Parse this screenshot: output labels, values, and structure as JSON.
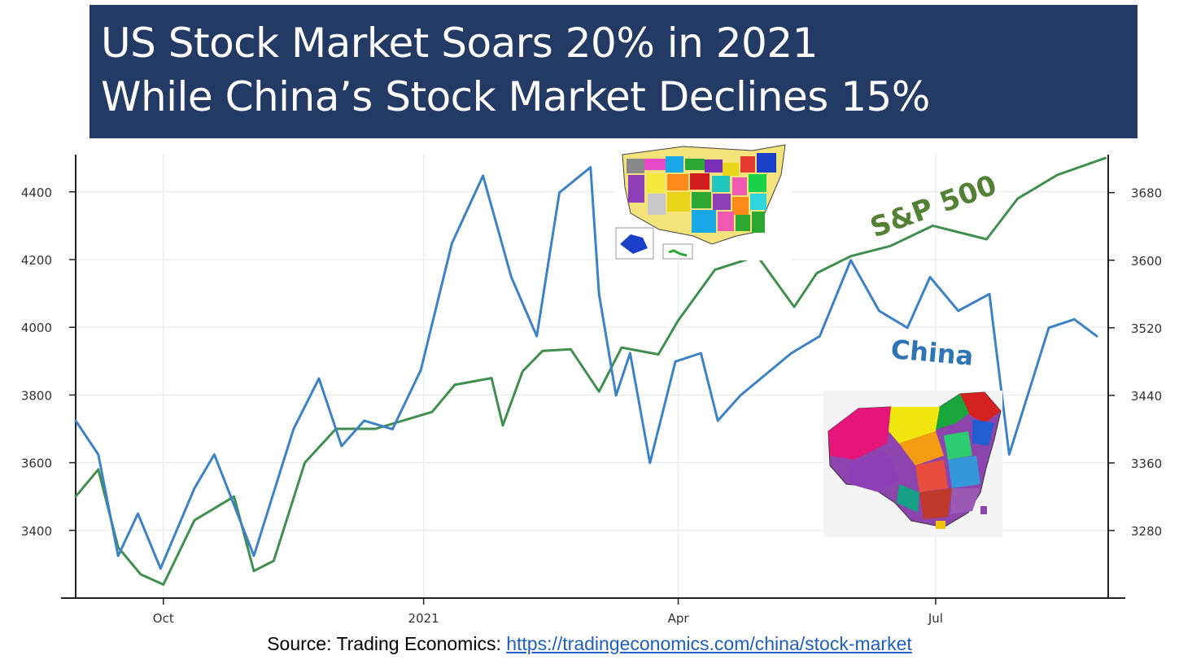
{
  "title": {
    "line1": "US Stock Market Soars 20% in 2021",
    "line2": "While China’s Stock Market Declines 15%"
  },
  "source": {
    "prefix": "Source: Trading Economics: ",
    "link": "https://tradingeconomics.com/china/stock-market"
  },
  "colors": {
    "title_bg": "#223a64",
    "sp500": "#3f8f4f",
    "china": "#3b82c8",
    "sp500_label": "#538135",
    "china_label": "#2e75b6"
  },
  "icons": [
    "us-states-map-icon",
    "china-provinces-map-icon"
  ],
  "chart_data": {
    "type": "line",
    "x_tick_labels": [
      "Oct",
      "2021",
      "Apr",
      "Jul"
    ],
    "left_axis": {
      "ticks": [
        3400,
        3600,
        3800,
        4000,
        4200,
        4400
      ],
      "ylim": [
        3200,
        4510
      ]
    },
    "right_axis": {
      "ticks": [
        3280,
        3360,
        3440,
        3520,
        3600,
        3680
      ],
      "ylim": [
        3200,
        3725
      ]
    },
    "annotations": [
      "S&P 500",
      "China"
    ],
    "series": [
      {
        "name": "S&P 500",
        "axis": "left",
        "x": [
          "2020-08-31",
          "2020-09-08",
          "2020-09-15",
          "2020-09-23",
          "2020-10-01",
          "2020-10-12",
          "2020-10-26",
          "2020-11-02",
          "2020-11-09",
          "2020-11-20",
          "2020-12-01",
          "2020-12-15",
          "2021-01-04",
          "2021-01-12",
          "2021-01-25",
          "2021-01-29",
          "2021-02-05",
          "2021-02-12",
          "2021-02-22",
          "2021-03-04",
          "2021-03-12",
          "2021-03-25",
          "2021-04-01",
          "2021-04-14",
          "2021-04-29",
          "2021-05-12",
          "2021-05-20",
          "2021-06-01",
          "2021-06-15",
          "2021-06-30",
          "2021-07-19",
          "2021-07-30",
          "2021-08-13",
          "2021-08-30"
        ],
        "y": [
          3500,
          3580,
          3350,
          3270,
          3240,
          3430,
          3500,
          3280,
          3310,
          3600,
          3700,
          3700,
          3750,
          3830,
          3850,
          3710,
          3870,
          3930,
          3935,
          3810,
          3940,
          3920,
          4020,
          4170,
          4210,
          4060,
          4160,
          4210,
          4240,
          4300,
          4260,
          4380,
          4450,
          4500
        ]
      },
      {
        "name": "China",
        "axis": "right",
        "x": [
          "2020-08-31",
          "2020-09-08",
          "2020-09-15",
          "2020-09-22",
          "2020-09-30",
          "2020-10-12",
          "2020-10-19",
          "2020-10-26",
          "2020-11-02",
          "2020-11-16",
          "2020-11-25",
          "2020-12-03",
          "2020-12-11",
          "2020-12-21",
          "2020-12-31",
          "2021-01-11",
          "2021-01-22",
          "2021-02-01",
          "2021-02-10",
          "2021-02-18",
          "2021-03-01",
          "2021-03-04",
          "2021-03-10",
          "2021-03-15",
          "2021-03-22",
          "2021-03-31",
          "2021-04-09",
          "2021-04-15",
          "2021-04-23",
          "2021-05-11",
          "2021-05-21",
          "2021-06-01",
          "2021-06-11",
          "2021-06-21",
          "2021-06-29",
          "2021-07-09",
          "2021-07-20",
          "2021-07-27",
          "2021-08-10",
          "2021-08-19",
          "2021-08-27"
        ],
        "y": [
          3410,
          3370,
          3250,
          3300,
          3235,
          3330,
          3370,
          3310,
          3250,
          3400,
          3460,
          3380,
          3410,
          3400,
          3470,
          3620,
          3700,
          3580,
          3510,
          3680,
          3710,
          3560,
          3440,
          3490,
          3360,
          3480,
          3490,
          3410,
          3440,
          3490,
          3510,
          3600,
          3540,
          3520,
          3580,
          3540,
          3560,
          3370,
          3520,
          3530,
          3510
        ]
      }
    ]
  }
}
